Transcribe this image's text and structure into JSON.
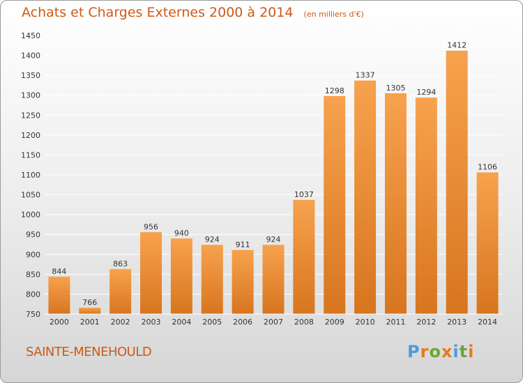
{
  "header": {
    "title": "Achats et Charges Externes 2000 à 2014",
    "unit": "(en milliers d'€)"
  },
  "footer": {
    "commune": "SAINTE-MENEHOULD",
    "logo_text": "Proxiti"
  },
  "colors": {
    "title": "#cc5a16",
    "bar_light": "#f7a24e",
    "bar_dark": "#d8751f",
    "grid": "#ffffff"
  },
  "chart_data": {
    "type": "bar",
    "title": "Achats et Charges Externes 2000 à 2014",
    "subtitle": "(en milliers d'€)",
    "xlabel": "",
    "ylabel": "",
    "categories": [
      "2000",
      "2001",
      "2002",
      "2003",
      "2004",
      "2005",
      "2006",
      "2007",
      "2008",
      "2009",
      "2010",
      "2011",
      "2012",
      "2013",
      "2014"
    ],
    "values": [
      844,
      766,
      863,
      956,
      940,
      924,
      911,
      924,
      1037,
      1298,
      1337,
      1305,
      1294,
      1412,
      1106
    ],
    "ylim": [
      750,
      1450
    ],
    "yticks": [
      750,
      800,
      850,
      900,
      950,
      1000,
      1050,
      1100,
      1150,
      1200,
      1250,
      1300,
      1350,
      1400,
      1450
    ],
    "grid": true,
    "data_labels": true
  }
}
